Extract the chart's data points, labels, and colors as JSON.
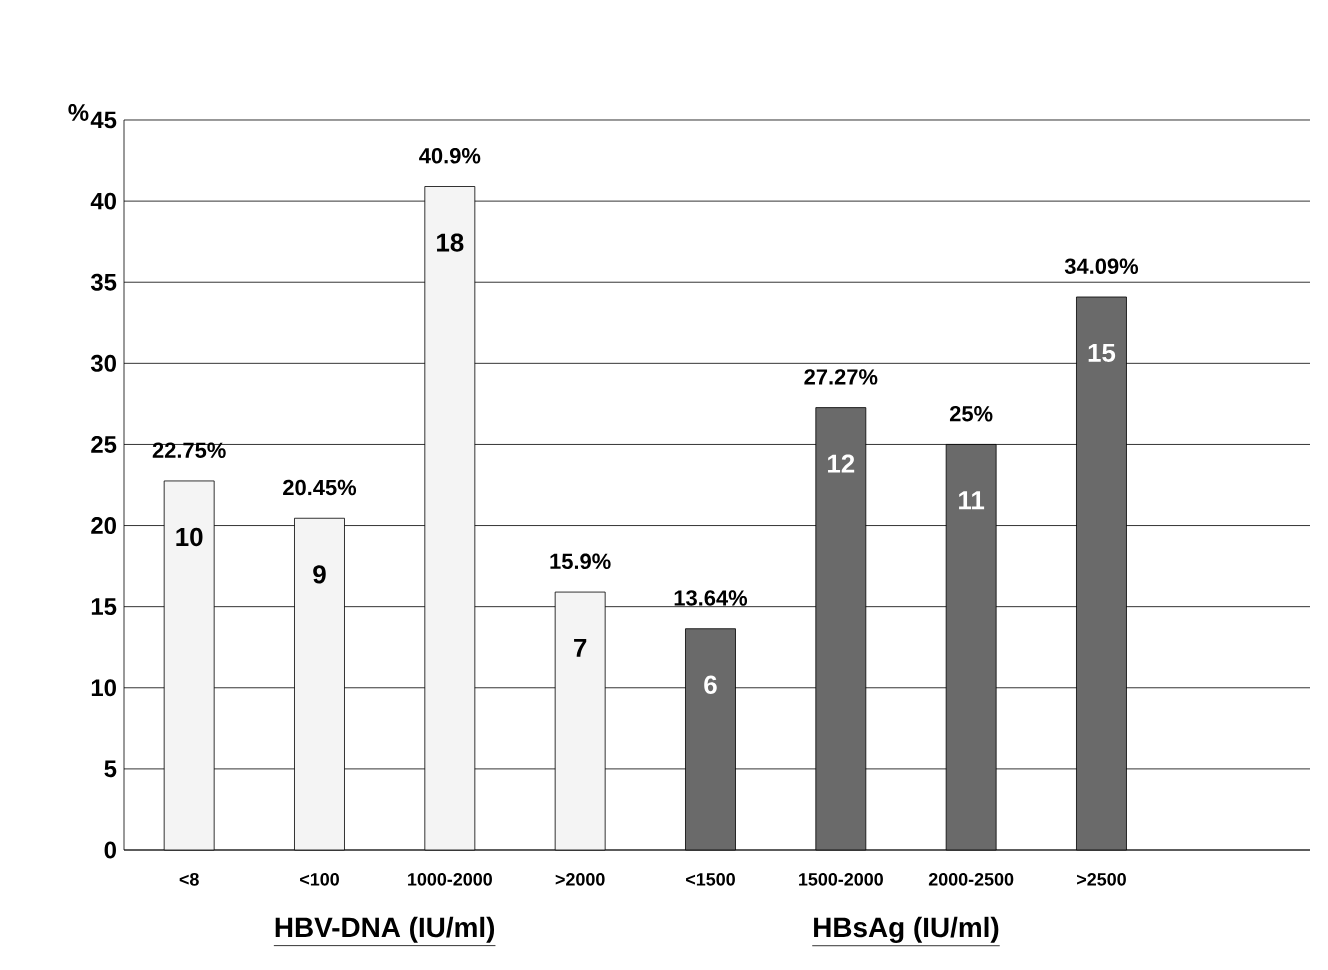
{
  "chart_data": {
    "type": "bar",
    "ylabel": "%",
    "categories": [
      "<8",
      "<100",
      "1000-2000",
      ">2000",
      "<1500",
      "1500-2000",
      "2000-2500",
      ">2500"
    ],
    "values": [
      22.75,
      20.45,
      40.9,
      15.9,
      13.64,
      27.27,
      25,
      34.09
    ],
    "value_labels": [
      "22.75%",
      "20.45%",
      "40.9%",
      "15.9%",
      "13.64%",
      "27.27%",
      "25%",
      "34.09%"
    ],
    "colors": [
      "#f4f4f4",
      "#f4f4f4",
      "#f4f4f4",
      "#f4f4f4",
      "#6a6a6a",
      "#6a6a6a",
      "#6a6a6a",
      "#6a6a6a"
    ],
    "annotations": [
      "10",
      "9",
      "18",
      "7",
      "6",
      "12",
      "11",
      "15",
      "HBV-DNA (IU/ml)",
      "HBsAg (IU/ml)"
    ],
    "ylim": [
      0,
      45
    ],
    "yticks": [
      0,
      5,
      10,
      15,
      20,
      25,
      30,
      35,
      40,
      45
    ],
    "grid": "y"
  }
}
